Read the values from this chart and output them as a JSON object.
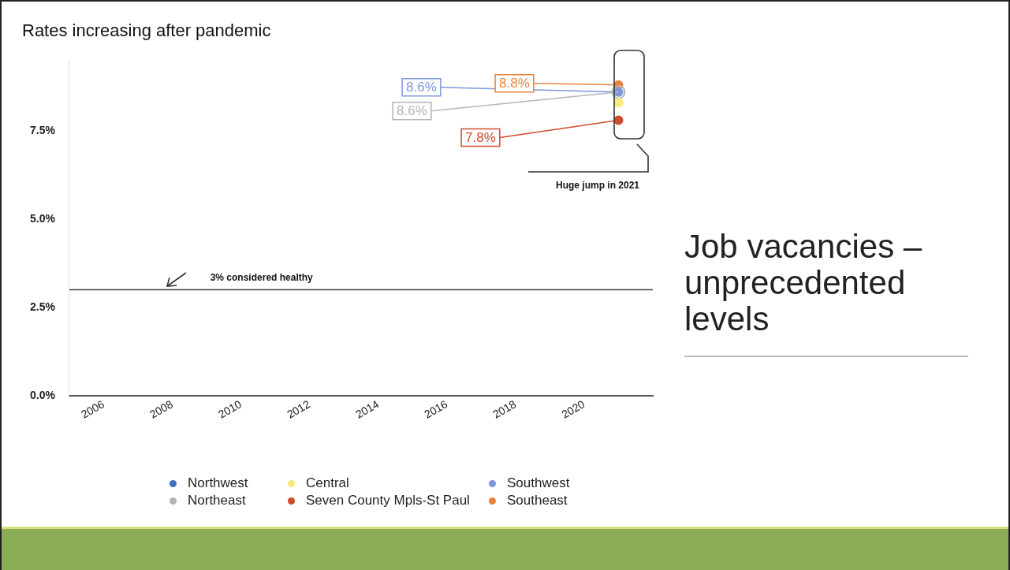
{
  "chart_data": {
    "type": "line",
    "title": "Rates increasing after pandemic",
    "x": [
      2021
    ],
    "xlim": [
      2005,
      2022
    ],
    "xticks": [
      2006,
      2008,
      2010,
      2012,
      2014,
      2016,
      2018,
      2020
    ],
    "ylim": [
      0,
      9.5
    ],
    "yticks": [
      {
        "value": 0,
        "label": "0.0%"
      },
      {
        "value": 2.5,
        "label": "2.5%"
      },
      {
        "value": 5,
        "label": "5.0%"
      },
      {
        "value": 7.5,
        "label": "7.5%"
      }
    ],
    "series": [
      {
        "name": "Northwest",
        "color": "#3b6fc6",
        "values": [
          null
        ],
        "value_labels": [
          null
        ]
      },
      {
        "name": "Central",
        "color": "#fbe97a",
        "values": [
          8.3
        ],
        "value_labels": [
          null
        ]
      },
      {
        "name": "Southwest",
        "color": "#7f98dc",
        "values": [
          8.6
        ],
        "value_labels": [
          "8.6%"
        ]
      },
      {
        "name": "Northeast",
        "color": "#b4b4bc",
        "values": [
          8.6
        ],
        "value_labels": [
          "8.6%"
        ]
      },
      {
        "name": "Seven County Mpls-St Paul",
        "color": "#d24a2c",
        "values": [
          7.8
        ],
        "value_labels": [
          "7.8%"
        ]
      },
      {
        "name": "Southeast",
        "color": "#e8843a",
        "values": [
          8.8
        ],
        "value_labels": [
          "8.8%"
        ]
      }
    ],
    "marker": "circle",
    "grid": false,
    "legend": "bottom",
    "ref_lines": [
      {
        "axis": "y",
        "value": 3,
        "label": "3% considered healthy",
        "color": "#444444"
      }
    ],
    "annotations": [
      "Huge jump in 2021",
      "Job vacancies – unprecedented levels"
    ]
  }
}
